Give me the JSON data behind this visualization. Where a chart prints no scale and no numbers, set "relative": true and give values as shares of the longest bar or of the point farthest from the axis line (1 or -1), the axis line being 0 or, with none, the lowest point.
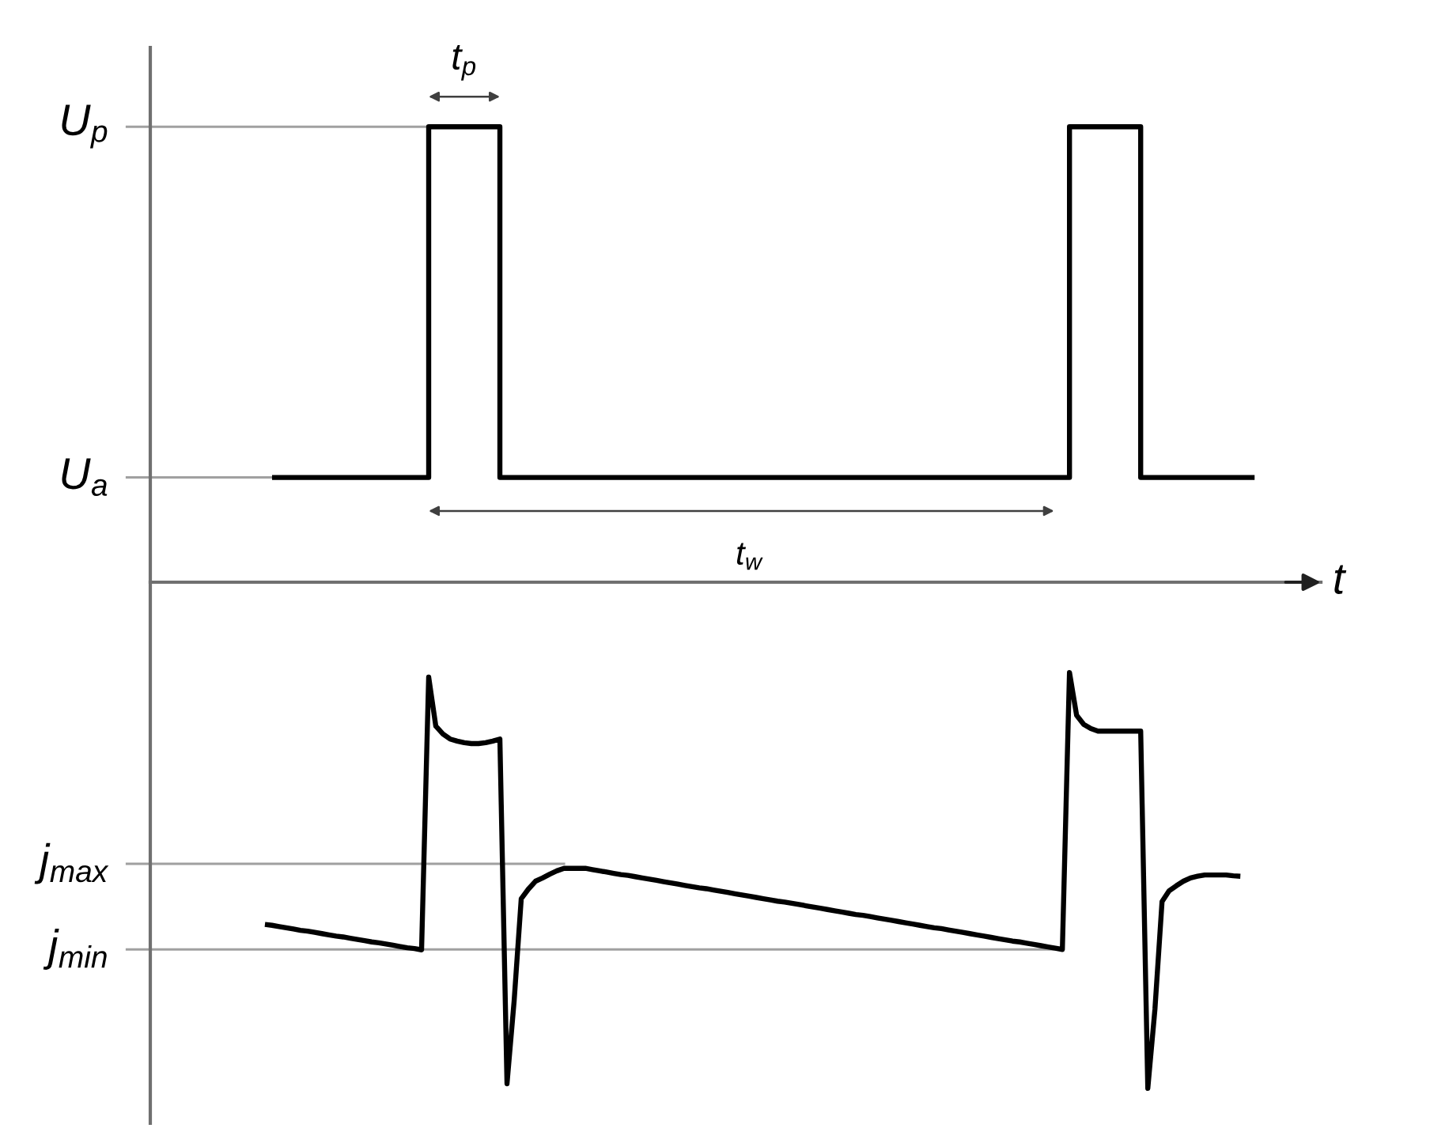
{
  "chart_data": [
    {
      "type": "step",
      "relative": true,
      "xlabel": "t",
      "tick_labels": false,
      "categories": [
        null,
        null,
        null,
        null,
        null,
        null,
        null,
        null,
        null,
        null,
        null,
        null,
        null,
        null,
        null,
        null,
        null,
        null,
        null,
        null,
        null,
        null,
        null,
        null,
        null,
        null,
        null,
        null,
        null,
        null,
        null,
        null,
        null,
        null,
        null,
        null,
        null,
        null,
        null,
        null,
        null,
        null,
        null,
        null,
        null,
        null,
        null,
        null,
        null,
        null,
        null,
        null,
        null,
        null,
        null,
        null,
        null,
        null,
        null,
        null,
        null,
        null,
        null,
        null,
        null,
        null,
        null,
        null,
        null,
        null,
        null,
        null,
        null,
        null,
        null,
        null,
        null,
        null,
        null,
        null,
        null,
        null,
        null,
        null,
        null,
        null,
        null,
        null,
        null,
        null,
        null,
        null,
        null,
        null,
        null,
        null,
        null,
        null,
        null,
        null,
        null,
        null,
        null,
        null,
        null,
        null,
        null,
        null,
        null,
        null,
        null,
        null,
        null,
        null,
        null,
        null,
        null,
        null,
        null,
        null,
        null,
        null,
        null,
        null,
        null,
        null,
        null,
        null,
        null,
        null,
        null,
        null,
        null,
        null,
        null,
        null,
        null,
        null,
        null,
        null
      ],
      "color": "#000000",
      "values": [
        null,
        0.23,
        0.23,
        0.23,
        0.23,
        0.23,
        0.23,
        0.23,
        0.23,
        0.23,
        0.23,
        0.23,
        0.23,
        0.23,
        0.23,
        0.23,
        0.23,
        0.23,
        0.23,
        0.23,
        0.23,
        0.23,
        0.23,
        1,
        1,
        1,
        1,
        1,
        1,
        1,
        1,
        1,
        1,
        0.23,
        0.23,
        0.23,
        0.23,
        0.23,
        0.23,
        0.23,
        0.23,
        0.23,
        0.23,
        0.23,
        0.23,
        0.23,
        0.23,
        0.23,
        0.23,
        0.23,
        0.23,
        0.23,
        0.23,
        0.23,
        0.23,
        0.23,
        0.23,
        0.23,
        0.23,
        0.23,
        0.23,
        0.23,
        0.23,
        0.23,
        0.23,
        0.23,
        0.23,
        0.23,
        0.23,
        0.23,
        0.23,
        0.23,
        0.23,
        0.23,
        0.23,
        0.23,
        0.23,
        0.23,
        0.23,
        0.23,
        0.23,
        0.23,
        0.23,
        0.23,
        0.23,
        0.23,
        0.23,
        0.23,
        0.23,
        0.23,
        0.23,
        0.23,
        0.23,
        0.23,
        0.23,
        0.23,
        0.23,
        0.23,
        0.23,
        0.23,
        0.23,
        0.23,
        0.23,
        0.23,
        0.23,
        0.23,
        0.23,
        0.23,
        0.23,
        0.23,
        0.23,
        0.23,
        0.23,
        1,
        1,
        1,
        1,
        1,
        1,
        1,
        1,
        1,
        1,
        0.23,
        0.23,
        0.23,
        0.23,
        0.23,
        0.23,
        0.23,
        0.23,
        0.23,
        0.23,
        0.23,
        0.23,
        0.23,
        0.23,
        0.23,
        0.23,
        0.23
      ],
      "ref_lines": [
        {
          "axis": "y",
          "value": 1,
          "label": "U$_{p}$",
          "color": "#a0a0a0"
        },
        {
          "axis": "y",
          "value": 0.23,
          "label": "U$_{a}$",
          "color": "#a0a0a0"
        }
      ],
      "annotations": [
        "t$_{p}$",
        "t$_{w}$"
      ]
    },
    {
      "type": "line",
      "relative": true,
      "tick_labels": false,
      "categories": [
        null,
        null,
        null,
        null,
        null,
        null,
        null,
        null,
        null,
        null,
        null,
        null,
        null,
        null,
        null,
        null,
        null,
        null,
        null,
        null,
        null,
        null,
        null,
        null,
        null,
        null,
        null,
        null,
        null,
        null,
        null,
        null,
        null,
        null,
        null,
        null,
        null,
        null,
        null,
        null,
        null,
        null,
        null,
        null,
        null,
        null,
        null,
        null,
        null,
        null,
        null,
        null,
        null,
        null,
        null,
        null,
        null,
        null,
        null,
        null,
        null,
        null,
        null,
        null,
        null,
        null,
        null,
        null,
        null,
        null,
        null,
        null,
        null,
        null,
        null,
        null,
        null,
        null,
        null,
        null,
        null,
        null,
        null,
        null,
        null,
        null,
        null,
        null,
        null,
        null,
        null,
        null,
        null,
        null,
        null,
        null,
        null,
        null,
        null,
        null,
        null,
        null,
        null,
        null,
        null,
        null,
        null,
        null,
        null,
        null,
        null,
        null,
        null,
        null,
        null,
        null,
        null,
        null,
        null,
        null,
        null,
        null,
        null,
        null,
        null,
        null,
        null,
        null,
        null,
        null,
        null,
        null,
        null,
        null,
        null,
        null,
        null,
        null,
        null,
        null
      ],
      "color": "#000000",
      "values": [
        0.394,
        0.392,
        0.389,
        0.386,
        0.383,
        0.38,
        0.378,
        0.375,
        0.372,
        0.369,
        0.366,
        0.364,
        0.361,
        0.358,
        0.355,
        0.352,
        0.35,
        0.347,
        0.344,
        0.341,
        0.338,
        0.336,
        0.333,
        0.989,
        0.871,
        0.852,
        0.84,
        0.835,
        0.831,
        0.829,
        0.829,
        0.831,
        0.835,
        0.84,
        0.011,
        0.21,
        0.456,
        0.479,
        0.498,
        0.506,
        0.515,
        0.523,
        0.529,
        0.529,
        0.529,
        0.529,
        0.526,
        0.523,
        0.52,
        0.517,
        0.514,
        0.512,
        0.509,
        0.506,
        0.503,
        0.5,
        0.497,
        0.494,
        0.491,
        0.488,
        0.485,
        0.482,
        0.48,
        0.477,
        0.474,
        0.471,
        0.468,
        0.465,
        0.462,
        0.459,
        0.456,
        0.453,
        0.45,
        0.448,
        0.445,
        0.442,
        0.439,
        0.436,
        0.433,
        0.43,
        0.427,
        0.424,
        0.421,
        0.418,
        0.416,
        0.413,
        0.41,
        0.407,
        0.404,
        0.401,
        0.398,
        0.395,
        0.392,
        0.389,
        0.386,
        0.384,
        0.381,
        0.378,
        0.375,
        0.372,
        0.369,
        0.366,
        0.363,
        0.36,
        0.357,
        0.354,
        0.352,
        0.349,
        0.346,
        0.343,
        0.34,
        0.337,
        0.334,
        1,
        0.897,
        0.875,
        0.865,
        0.859,
        0.859,
        0.859,
        0.859,
        0.859,
        0.859,
        0.859,
        0,
        0.19,
        0.449,
        0.475,
        0.487,
        0.498,
        0.506,
        0.51,
        0.513,
        0.513,
        0.513,
        0.513,
        0.511,
        0.51,
        null,
        null
      ],
      "ref_lines": [
        {
          "axis": "y",
          "value": 0.54,
          "label": "j$_{max}$",
          "color": "#a0a0a0"
        },
        {
          "axis": "y",
          "value": 0.334,
          "label": "j$_{min}$",
          "color": "#a0a0a0"
        }
      ]
    }
  ]
}
